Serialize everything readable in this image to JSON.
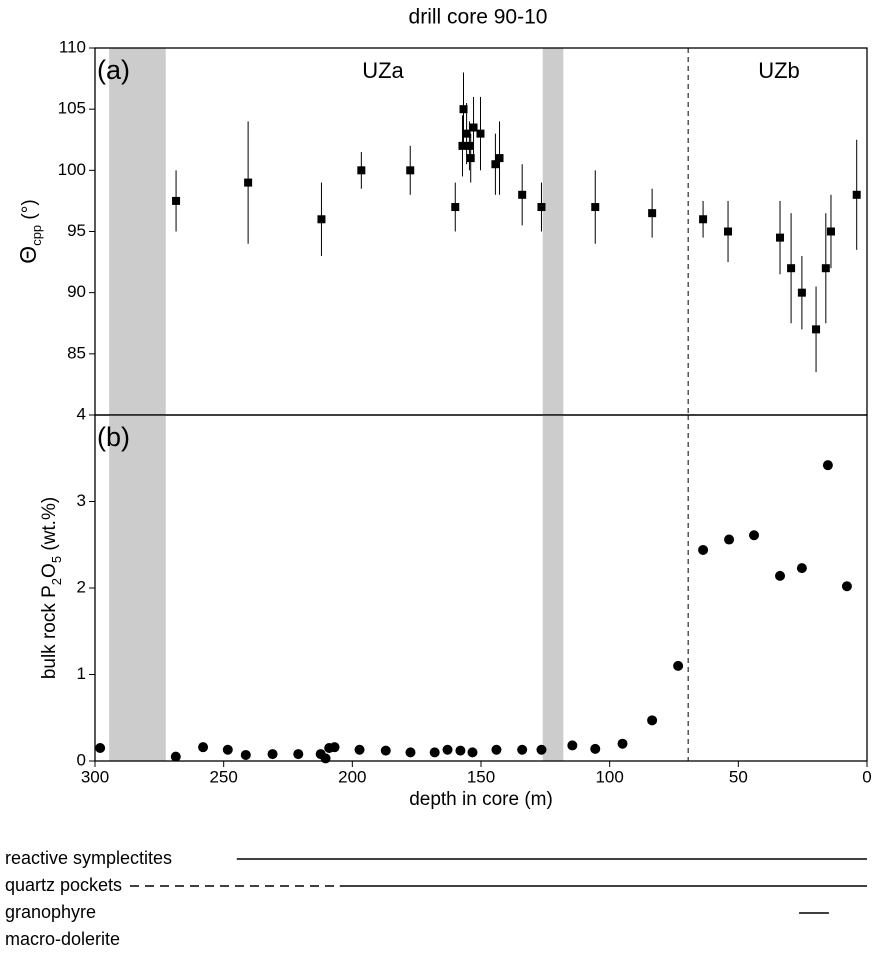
{
  "chart_data": [
    {
      "type": "scatter",
      "title": "drill core 90-10",
      "panel_label": "(a)",
      "marker": "square",
      "color": "#000000",
      "y_label": [
        [
          "Θ",
          false
        ],
        [
          "cpp",
          true
        ],
        [
          " (°)",
          false
        ]
      ],
      "x": [
        268.5,
        240.5,
        212,
        196.5,
        177.5,
        160,
        156.8,
        157.2,
        155.6,
        154.5,
        154,
        152.9,
        150.2,
        144.4,
        142.8,
        134,
        126.5,
        105.6,
        83.5,
        63.7,
        54,
        33.8,
        29.5,
        25.3,
        19.8,
        16,
        14,
        4
      ],
      "values": [
        97.5,
        99,
        96,
        100,
        100,
        97,
        105,
        102,
        103,
        102,
        101,
        103.5,
        103,
        100.5,
        101,
        98,
        97,
        97,
        96.5,
        96,
        95,
        94.5,
        92,
        90,
        87,
        92,
        95,
        98
      ],
      "errors": [
        2.5,
        5,
        3,
        1.5,
        2,
        2,
        3,
        2.5,
        2.5,
        2,
        2,
        2.5,
        3,
        2.5,
        3,
        2.5,
        2,
        3,
        2,
        1.5,
        2.5,
        3,
        4.5,
        3,
        3.5,
        4.5,
        3,
        4.5
      ],
      "xlim": [
        300,
        0
      ],
      "ylim": [
        80,
        110
      ],
      "yticks": [
        85,
        90,
        95,
        100,
        105,
        110
      ]
    },
    {
      "type": "scatter",
      "panel_label": "(b)",
      "marker": "circle",
      "color": "#000000",
      "y_label": [
        [
          "bulk rock P",
          false
        ],
        [
          "2",
          true
        ],
        [
          "O",
          false
        ],
        [
          "5",
          true
        ],
        [
          " (wt.%)",
          false
        ]
      ],
      "x_label": "depth in core (m)",
      "x": [
        298,
        268.6,
        258,
        248.4,
        241.4,
        231,
        221,
        212.3,
        210.4,
        209,
        206.9,
        197.2,
        187,
        177.4,
        168,
        163,
        158,
        153.3,
        144,
        134,
        126.5,
        114.5,
        105.6,
        95,
        83.5,
        73.4,
        63.7,
        53.6,
        43.9,
        33.8,
        25.3,
        15.2,
        7.8
      ],
      "values": [
        0.15,
        0.05,
        0.16,
        0.13,
        0.07,
        0.08,
        0.08,
        0.08,
        0.03,
        0.15,
        0.16,
        0.13,
        0.12,
        0.1,
        0.1,
        0.13,
        0.12,
        0.1,
        0.13,
        0.13,
        0.13,
        0.18,
        0.14,
        0.2,
        0.47,
        1.1,
        2.44,
        2.56,
        2.61,
        2.14,
        2.23,
        3.42,
        2.02
      ],
      "xlim": [
        300,
        0
      ],
      "ylim": [
        0,
        4
      ],
      "yticks": [
        0,
        1,
        2,
        3,
        4
      ],
      "xticks": [
        300,
        250,
        200,
        150,
        100,
        50,
        0
      ]
    }
  ],
  "zones": {
    "labels": [
      "UZa",
      "UZb"
    ],
    "shaded": [
      [
        294.5,
        272.5
      ],
      [
        126,
        118
      ]
    ],
    "boundary": 69.5
  },
  "features": [
    {
      "name": "reactive symplectites",
      "solid": [
        [
          244.9,
          0
        ]
      ],
      "dashed": []
    },
    {
      "name": "quartz pockets",
      "solid": [
        [
          204.9,
          0
        ]
      ],
      "dashed": [
        [
          286.4,
          204.9
        ]
      ]
    },
    {
      "name": "granophyre",
      "solid": [
        [
          26.4,
          14.8
        ]
      ],
      "dashed": []
    },
    {
      "name": "macro-dolerite",
      "solid": [],
      "dashed": []
    }
  ]
}
